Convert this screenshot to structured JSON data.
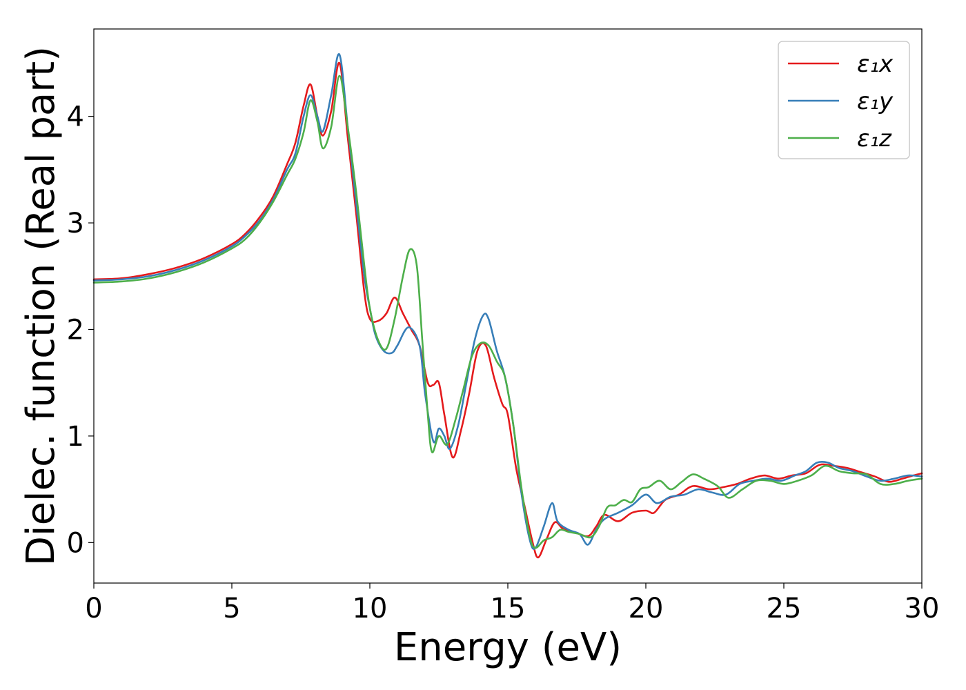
{
  "chart_data": {
    "type": "line",
    "title": "",
    "xlabel": "Energy (eV)",
    "ylabel": "Dielec. function (Real part)",
    "xlim": [
      0,
      30
    ],
    "ylim": [
      -0.38,
      4.82
    ],
    "xticks": [
      0,
      5,
      10,
      15,
      20,
      25,
      30
    ],
    "yticks": [
      0,
      1,
      2,
      3,
      4
    ],
    "grid": false,
    "legend_position": "top-right",
    "series": [
      {
        "name": "ε₁x",
        "color": "#e41a1c",
        "x": [
          0,
          1,
          2,
          3,
          4,
          5,
          5.5,
          6,
          6.5,
          7,
          7.3,
          7.6,
          7.85,
          8.1,
          8.3,
          8.6,
          8.9,
          9.2,
          9.5,
          9.8,
          10.0,
          10.3,
          10.6,
          10.9,
          11.2,
          11.5,
          11.8,
          12.1,
          12.3,
          12.5,
          12.7,
          13.0,
          13.3,
          13.6,
          13.9,
          14.2,
          14.5,
          14.8,
          15.0,
          15.3,
          15.6,
          15.9,
          16.1,
          16.4,
          16.7,
          17.0,
          17.4,
          17.9,
          18.2,
          18.5,
          19.0,
          19.5,
          20.0,
          20.3,
          20.7,
          21.2,
          21.7,
          22.3,
          22.8,
          23.3,
          23.8,
          24.3,
          24.8,
          25.3,
          25.8,
          26.3,
          26.8,
          27.3,
          27.8,
          28.3,
          28.8,
          29.3,
          29.7,
          30.0
        ],
        "y": [
          2.47,
          2.48,
          2.52,
          2.58,
          2.67,
          2.8,
          2.9,
          3.05,
          3.25,
          3.55,
          3.75,
          4.1,
          4.3,
          4.0,
          3.82,
          4.05,
          4.5,
          3.8,
          3.1,
          2.35,
          2.1,
          2.08,
          2.15,
          2.3,
          2.15,
          2.0,
          1.85,
          1.5,
          1.48,
          1.5,
          1.2,
          0.8,
          1.05,
          1.4,
          1.8,
          1.85,
          1.55,
          1.3,
          1.2,
          0.7,
          0.35,
          0.0,
          -0.14,
          0.03,
          0.19,
          0.13,
          0.1,
          0.06,
          0.15,
          0.26,
          0.2,
          0.28,
          0.3,
          0.28,
          0.4,
          0.45,
          0.53,
          0.5,
          0.52,
          0.55,
          0.6,
          0.63,
          0.6,
          0.63,
          0.65,
          0.73,
          0.72,
          0.7,
          0.66,
          0.62,
          0.57,
          0.6,
          0.63,
          0.65
        ]
      },
      {
        "name": "ε₁y",
        "color": "#377eb8",
        "x": [
          0,
          1,
          2,
          3,
          4,
          5,
          5.5,
          6,
          6.5,
          7,
          7.3,
          7.6,
          7.85,
          8.1,
          8.3,
          8.6,
          8.9,
          9.2,
          9.5,
          9.8,
          10.0,
          10.2,
          10.5,
          10.8,
          11.0,
          11.4,
          11.8,
          12.0,
          12.3,
          12.5,
          12.7,
          12.9,
          13.2,
          13.5,
          13.8,
          14.1,
          14.3,
          14.6,
          14.9,
          15.2,
          15.5,
          15.8,
          16.0,
          16.3,
          16.6,
          16.8,
          17.2,
          17.6,
          17.9,
          18.2,
          18.5,
          19.0,
          19.5,
          20.0,
          20.4,
          20.9,
          21.4,
          21.9,
          22.4,
          22.9,
          23.4,
          23.9,
          24.4,
          24.9,
          25.4,
          25.8,
          26.2,
          26.6,
          27.0,
          27.5,
          28.0,
          28.5,
          29.0,
          29.5,
          30.0
        ],
        "y": [
          2.46,
          2.47,
          2.5,
          2.56,
          2.65,
          2.78,
          2.88,
          3.02,
          3.22,
          3.5,
          3.65,
          4.0,
          4.2,
          4.0,
          3.86,
          4.2,
          4.58,
          3.9,
          3.2,
          2.5,
          2.2,
          1.95,
          1.8,
          1.78,
          1.85,
          2.02,
          1.85,
          1.4,
          0.95,
          1.07,
          1.0,
          0.88,
          1.1,
          1.5,
          1.9,
          2.13,
          2.1,
          1.8,
          1.55,
          1.1,
          0.45,
          0.02,
          -0.05,
          0.15,
          0.37,
          0.2,
          0.12,
          0.08,
          -0.02,
          0.12,
          0.22,
          0.28,
          0.35,
          0.45,
          0.37,
          0.43,
          0.45,
          0.5,
          0.47,
          0.45,
          0.55,
          0.58,
          0.6,
          0.58,
          0.63,
          0.67,
          0.75,
          0.75,
          0.7,
          0.67,
          0.62,
          0.58,
          0.6,
          0.63,
          0.62
        ]
      },
      {
        "name": "ε₁z",
        "color": "#4daf4a",
        "x": [
          0,
          1,
          2,
          3,
          4,
          5,
          5.5,
          6,
          6.5,
          7,
          7.3,
          7.6,
          7.85,
          8.1,
          8.3,
          8.6,
          8.9,
          9.2,
          9.5,
          9.8,
          10.0,
          10.3,
          10.6,
          10.9,
          11.2,
          11.45,
          11.7,
          11.9,
          12.1,
          12.25,
          12.5,
          12.8,
          13.1,
          13.4,
          13.7,
          14.0,
          14.3,
          14.6,
          14.9,
          15.2,
          15.5,
          15.8,
          16.0,
          16.3,
          16.6,
          16.9,
          17.2,
          17.6,
          18.0,
          18.3,
          18.6,
          18.9,
          19.2,
          19.5,
          19.8,
          20.1,
          20.5,
          20.9,
          21.3,
          21.7,
          22.1,
          22.6,
          23.0,
          23.5,
          24.0,
          24.5,
          25.0,
          25.5,
          26.0,
          26.5,
          27.0,
          27.5,
          28.0,
          28.5,
          29.0,
          29.5,
          30.0
        ],
        "y": [
          2.44,
          2.45,
          2.48,
          2.54,
          2.63,
          2.76,
          2.85,
          3.0,
          3.2,
          3.45,
          3.6,
          3.85,
          4.15,
          3.95,
          3.7,
          3.9,
          4.38,
          3.9,
          3.3,
          2.6,
          2.2,
          1.9,
          1.82,
          2.1,
          2.5,
          2.75,
          2.6,
          1.9,
          1.2,
          0.85,
          1.0,
          0.92,
          1.15,
          1.45,
          1.75,
          1.87,
          1.85,
          1.7,
          1.55,
          1.1,
          0.5,
          0.05,
          -0.05,
          0.02,
          0.05,
          0.12,
          0.1,
          0.08,
          0.05,
          0.15,
          0.33,
          0.35,
          0.4,
          0.38,
          0.5,
          0.52,
          0.58,
          0.5,
          0.57,
          0.64,
          0.6,
          0.53,
          0.42,
          0.5,
          0.58,
          0.58,
          0.55,
          0.58,
          0.63,
          0.72,
          0.67,
          0.65,
          0.64,
          0.55,
          0.55,
          0.58,
          0.6
        ]
      }
    ]
  }
}
